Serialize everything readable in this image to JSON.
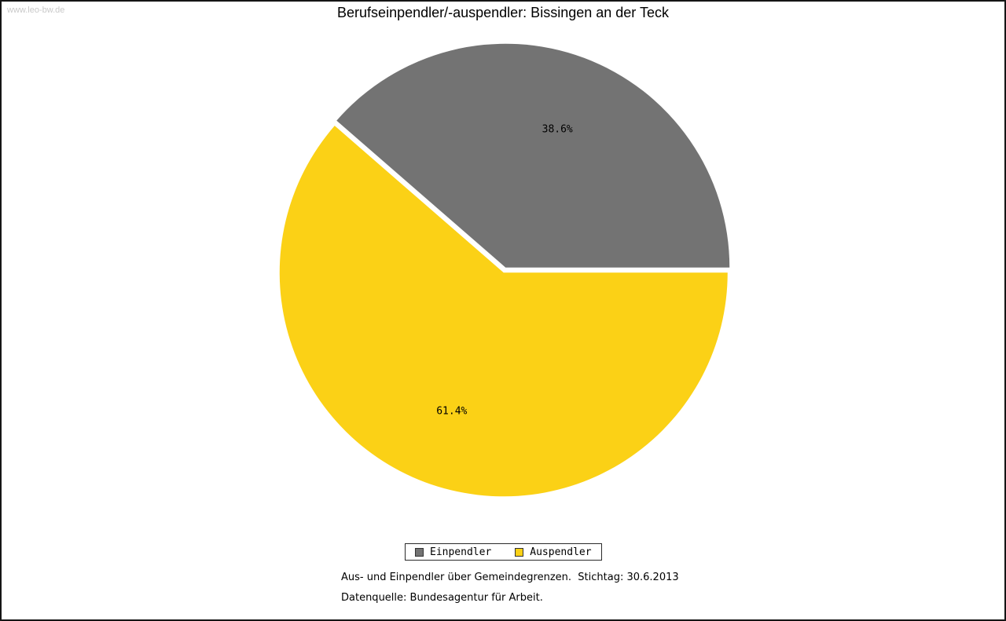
{
  "watermark": "www.leo-bw.de",
  "title": "Berufseinpendler/-auspendler: Bissingen an der Teck",
  "chart_data": {
    "type": "pie",
    "title": "Berufseinpendler/-auspendler: Bissingen an der Teck",
    "unit": "percent",
    "start_angle_deg": 0,
    "direction": "counterclockwise",
    "legend_position": "bottom",
    "slices": [
      {
        "label": "Einpendler",
        "value": 38.6,
        "display": "38.6%",
        "color": "#737373"
      },
      {
        "label": "Auspendler",
        "value": 61.4,
        "display": "61.4%",
        "color": "#FBD116"
      }
    ]
  },
  "footnotes": {
    "line1": "Aus- und Einpendler über Gemeindegrenzen.  Stichtag: 30.6.2013",
    "line2": "Datenquelle: Bundesagentur für Arbeit."
  }
}
